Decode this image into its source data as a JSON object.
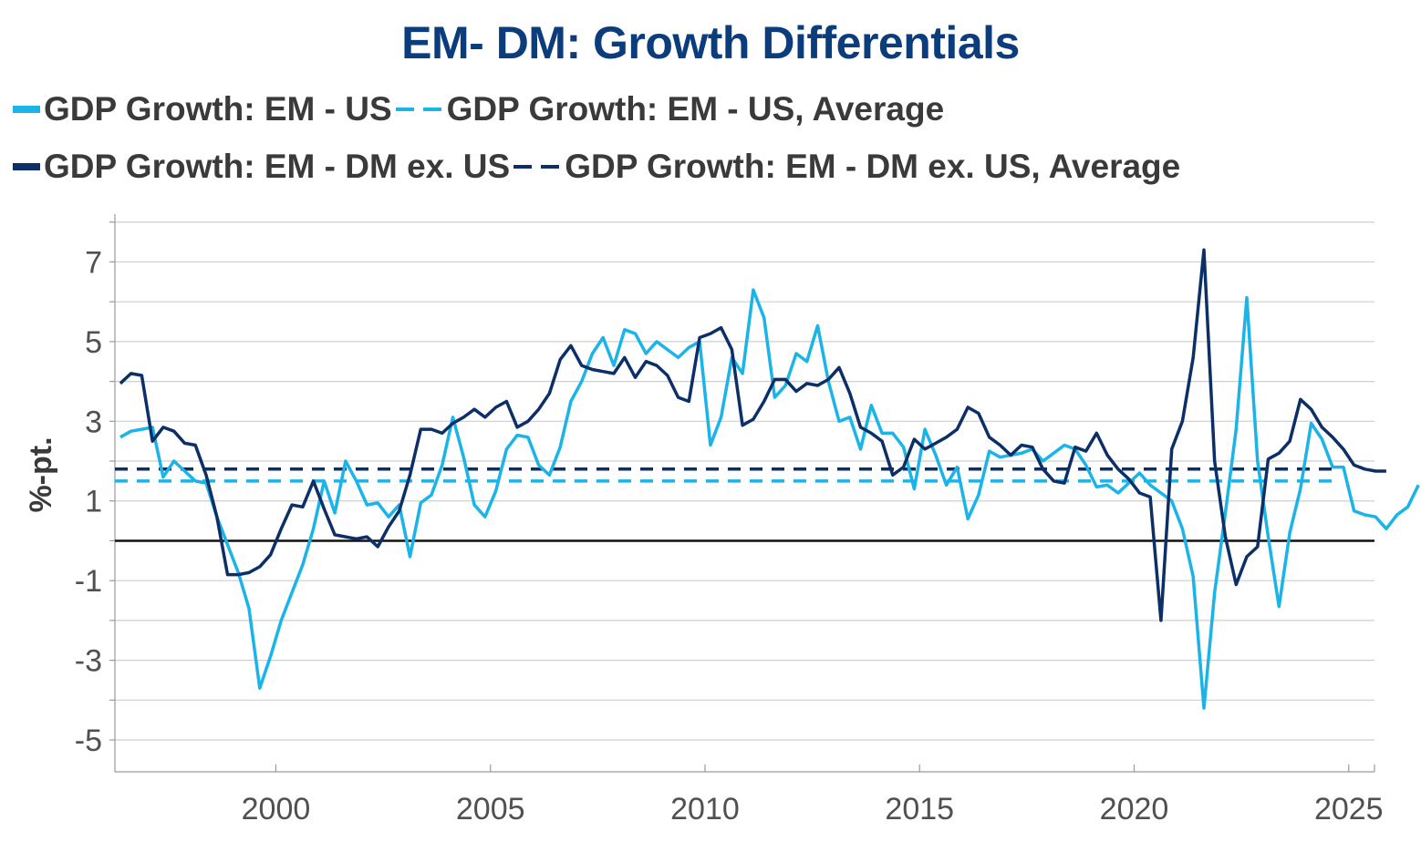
{
  "chart_data": {
    "type": "line",
    "title": "EM- DM: Growth Differentials",
    "ylabel": "%-pt.",
    "xlabel": "",
    "xlim": [
      1996.25,
      2025.6
    ],
    "ylim": [
      -5.8,
      8.2
    ],
    "y_ticks": [
      -5,
      -3,
      -1,
      1,
      3,
      5,
      7
    ],
    "x_ticks": [
      2000,
      2005,
      2010,
      2015,
      2020,
      2025
    ],
    "zero_line": true,
    "colors": {
      "light": "#1ab4e8",
      "dark": "#0b2f66"
    },
    "legend": [
      "GDP Growth: EM - US",
      "GDP Growth: EM - US, Average",
      "GDP Growth: EM - DM ex. US",
      "GDP Growth: EM - DM ex. US, Average"
    ],
    "series": [
      {
        "name": "GDP Growth: EM - US",
        "style": "solid",
        "color": "#1ab4e8",
        "start": 1996.375,
        "step": 0.25,
        "values": [
          2.6,
          2.75,
          2.8,
          2.85,
          1.6,
          2.0,
          1.75,
          1.5,
          1.45,
          0.6,
          -0.1,
          -0.8,
          -1.7,
          -3.7,
          -2.9,
          -2.0,
          -1.3,
          -0.6,
          0.3,
          1.5,
          0.7,
          2.0,
          1.5,
          0.9,
          0.95,
          0.6,
          0.9,
          -0.4,
          0.95,
          1.15,
          1.9,
          3.1,
          2.1,
          0.9,
          0.6,
          1.25,
          2.3,
          2.65,
          2.6,
          1.9,
          1.65,
          2.35,
          3.5,
          4.0,
          4.7,
          5.1,
          4.4,
          5.3,
          5.2,
          4.7,
          5.0,
          4.8,
          4.6,
          4.85,
          5.0,
          2.4,
          3.1,
          4.6,
          4.2,
          6.3,
          5.6,
          3.6,
          3.9,
          4.7,
          4.5,
          5.4,
          4.0,
          3.0,
          3.1,
          2.3,
          3.4,
          2.7,
          2.7,
          2.35,
          1.3,
          2.8,
          2.15,
          1.4,
          1.85,
          0.55,
          1.15,
          2.25,
          2.1,
          2.15,
          2.2,
          2.3,
          2.0,
          2.2,
          2.4,
          2.3,
          1.9,
          1.35,
          1.4,
          1.2,
          1.45,
          1.7,
          1.4,
          1.2,
          1.0,
          0.3,
          -0.9,
          -4.2,
          -1.3,
          0.7,
          2.8,
          6.1,
          2.0,
          0.1,
          -1.65,
          0.2,
          1.3,
          2.95,
          2.55,
          1.85,
          1.85,
          0.75,
          0.65,
          0.6,
          0.3,
          0.65,
          0.85,
          1.4
        ]
      },
      {
        "name": "GDP Growth: EM - US, Average",
        "style": "dashed",
        "color": "#1ab4e8",
        "value": 1.5
      },
      {
        "name": "GDP Growth: EM - DM ex. US",
        "style": "solid",
        "color": "#0b2f66",
        "start": 1996.375,
        "step": 0.25,
        "values": [
          3.95,
          4.2,
          4.15,
          2.5,
          2.85,
          2.75,
          2.45,
          2.4,
          1.65,
          0.6,
          -0.85,
          -0.85,
          -0.8,
          -0.65,
          -0.35,
          0.3,
          0.9,
          0.85,
          1.5,
          0.8,
          0.15,
          0.1,
          0.05,
          0.1,
          -0.15,
          0.35,
          0.75,
          1.65,
          2.8,
          2.8,
          2.7,
          2.95,
          3.1,
          3.3,
          3.1,
          3.35,
          3.5,
          2.85,
          3.0,
          3.3,
          3.7,
          4.55,
          4.9,
          4.4,
          4.3,
          4.25,
          4.2,
          4.6,
          4.1,
          4.5,
          4.4,
          4.15,
          3.6,
          3.5,
          5.1,
          5.2,
          5.35,
          4.8,
          2.9,
          3.05,
          3.5,
          4.05,
          4.05,
          3.75,
          3.95,
          3.9,
          4.05,
          4.35,
          3.7,
          2.85,
          2.7,
          2.5,
          1.65,
          1.85,
          2.55,
          2.3,
          2.45,
          2.6,
          2.8,
          3.35,
          3.2,
          2.6,
          2.4,
          2.15,
          2.4,
          2.35,
          1.8,
          1.5,
          1.45,
          2.35,
          2.25,
          2.7,
          2.15,
          1.8,
          1.55,
          1.2,
          1.1,
          -2.0,
          2.3,
          3.0,
          4.6,
          7.3,
          2.0,
          0.1,
          -1.1,
          -0.4,
          -0.15,
          2.05,
          2.2,
          2.5,
          3.55,
          3.3,
          2.85,
          2.6,
          2.3,
          1.9,
          1.8,
          1.75,
          1.75
        ]
      },
      {
        "name": "GDP Growth: EM - DM ex. US, Average",
        "style": "dashed",
        "color": "#0b2f66",
        "value": 1.8
      }
    ]
  }
}
